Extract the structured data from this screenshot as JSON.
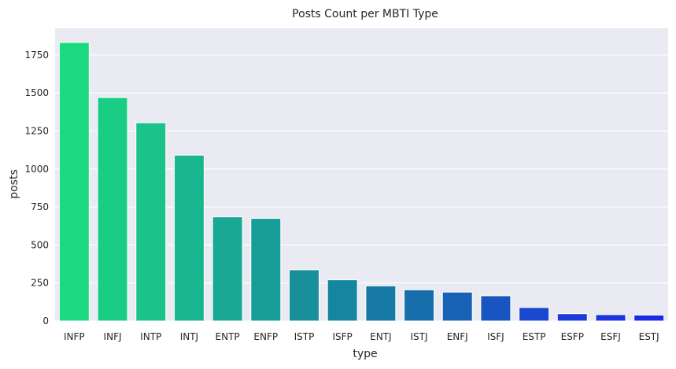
{
  "chart_data": {
    "type": "bar",
    "title": "Posts Count per MBTI Type",
    "xlabel": "type",
    "ylabel": "posts",
    "categories": [
      "INFP",
      "INFJ",
      "INTP",
      "INTJ",
      "ENTP",
      "ENFP",
      "ISTP",
      "ISFP",
      "ENTJ",
      "ISTJ",
      "ENFJ",
      "ISFJ",
      "ESTP",
      "ESFP",
      "ESFJ",
      "ESTJ"
    ],
    "values": [
      1832,
      1470,
      1304,
      1091,
      685,
      675,
      337,
      271,
      231,
      205,
      190,
      166,
      89,
      48,
      42,
      39
    ],
    "ylim": [
      0,
      1925
    ],
    "yticks": [
      0,
      250,
      500,
      750,
      1000,
      1250,
      1500,
      1750
    ],
    "grid": true,
    "colors": {
      "background": "#EAEAF2",
      "grid": "#FFFFFF",
      "palette": [
        "#1BD97E",
        "#1BCC84",
        "#1BC28A",
        "#19B690",
        "#18A894",
        "#179D98",
        "#17909C",
        "#1686A0",
        "#167AA4",
        "#166EAA",
        "#1762B4",
        "#1955C0",
        "#1A48CE",
        "#1B3CD8",
        "#1C33E0",
        "#1D28E8"
      ]
    }
  }
}
